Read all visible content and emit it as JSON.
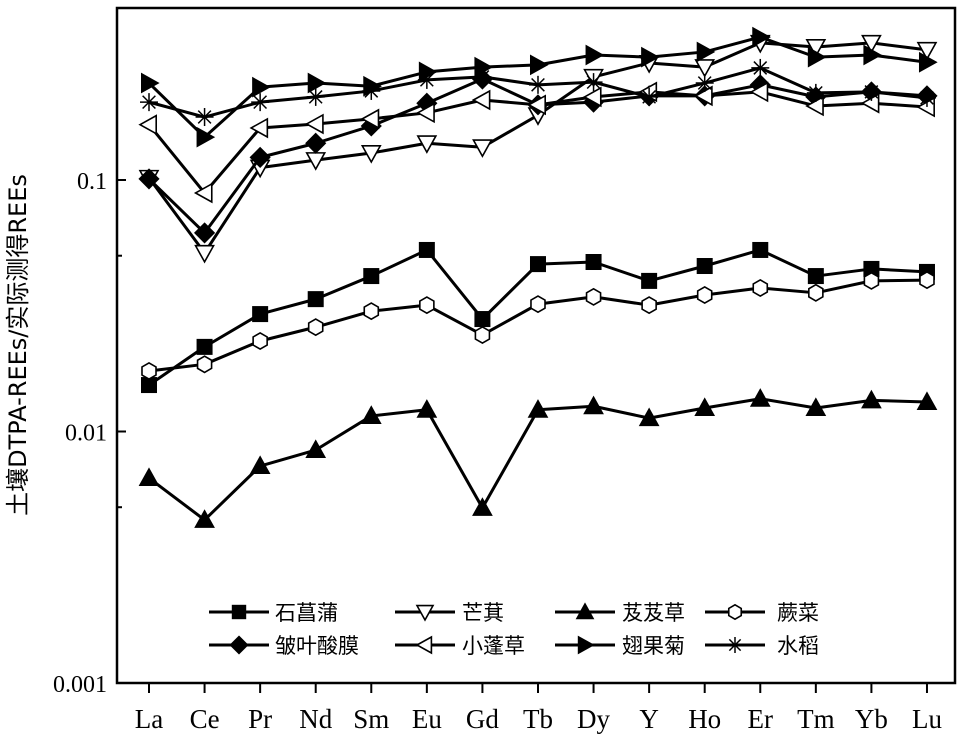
{
  "chart_data": {
    "type": "line",
    "title": "",
    "xlabel": "",
    "ylabel": "土壤DTPA-REEs/实际测得REEs",
    "yscale": "log",
    "ylim": [
      0.001,
      0.48
    ],
    "yticks": [
      0.001,
      0.01,
      0.1
    ],
    "ytick_labels": [
      "0.001",
      "0.01",
      "0.1"
    ],
    "grid": false,
    "legend_placement": "bottom-center",
    "categories": [
      "La",
      "Ce",
      "Pr",
      "Nd",
      "Sm",
      "Eu",
      "Gd",
      "Tb",
      "Dy",
      "Y",
      "Ho",
      "Er",
      "Tm",
      "Yb",
      "Lu"
    ],
    "series": [
      {
        "name": "石菖蒲",
        "marker": "square-filled",
        "values": [
          0.0153,
          0.0217,
          0.0293,
          0.0336,
          0.0415,
          0.0527,
          0.028,
          0.0463,
          0.0472,
          0.0397,
          0.0455,
          0.0527,
          0.0415,
          0.0443,
          0.0431
        ]
      },
      {
        "name": "芒萁",
        "marker": "triangle-down-open",
        "values": [
          0.102,
          0.0513,
          0.112,
          0.12,
          0.128,
          0.14,
          0.135,
          0.181,
          0.257,
          0.292,
          0.281,
          0.351,
          0.338,
          0.351,
          0.329
        ]
      },
      {
        "name": "芨芨草",
        "marker": "triangle-up-filled",
        "values": [
          0.00653,
          0.00445,
          0.00729,
          0.00844,
          0.01153,
          0.0122,
          0.00497,
          0.0122,
          0.0126,
          0.0113,
          0.0124,
          0.0135,
          0.0124,
          0.0133,
          0.0131
        ]
      },
      {
        "name": "蕨菜",
        "marker": "hexagon-open",
        "values": [
          0.0174,
          0.0185,
          0.0229,
          0.026,
          0.0301,
          0.0318,
          0.0242,
          0.0321,
          0.0343,
          0.0318,
          0.0349,
          0.0372,
          0.0356,
          0.0397,
          0.04
        ]
      },
      {
        "name": "皱叶酸膜",
        "marker": "diamond-filled",
        "values": [
          0.101,
          0.0616,
          0.123,
          0.14,
          0.164,
          0.202,
          0.252,
          0.199,
          0.204,
          0.216,
          0.216,
          0.239,
          0.214,
          0.224,
          0.216
        ]
      },
      {
        "name": "小蓬草",
        "marker": "triangle-left-open",
        "values": [
          0.166,
          0.0888,
          0.161,
          0.167,
          0.175,
          0.185,
          0.208,
          0.199,
          0.214,
          0.224,
          0.216,
          0.224,
          0.197,
          0.202,
          0.195
        ]
      },
      {
        "name": "翅果菊",
        "marker": "triangle-right-filled",
        "values": [
          0.243,
          0.148,
          0.234,
          0.243,
          0.236,
          0.269,
          0.281,
          0.287,
          0.314,
          0.308,
          0.323,
          0.37,
          0.308,
          0.314,
          0.294
        ]
      },
      {
        "name": "水稻",
        "marker": "asterisk",
        "values": [
          0.204,
          0.178,
          0.204,
          0.214,
          0.226,
          0.25,
          0.257,
          0.239,
          0.245,
          0.214,
          0.243,
          0.279,
          0.222,
          0.224,
          0.212
        ]
      }
    ]
  }
}
